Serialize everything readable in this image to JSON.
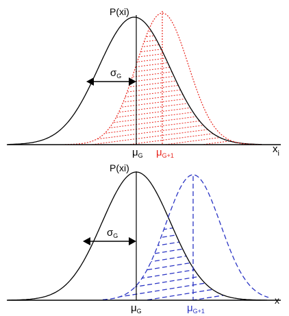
{
  "colors": {
    "base_curve": "#000000",
    "red_shift": "#e8241c",
    "blue_shift": "#2a34c4"
  },
  "top_panel": {
    "y_axis_label": "P(xi)",
    "sigma_label": "σ",
    "sigma_sub": "G",
    "mu_g": "μ",
    "mu_g_sub": "G",
    "mu_g1": "μ",
    "mu_g1_sub": "G+1",
    "x_axis_label": "x",
    "x_axis_sub": "i"
  },
  "bottom_panel": {
    "y_axis_label": "P(xi)",
    "sigma_label": "σ",
    "sigma_sub": "G",
    "mu_g": "μ",
    "mu_g_sub": "G",
    "mu_g1": "μ",
    "mu_g1_sub": "G+1",
    "x_axis_label": "x"
  }
}
